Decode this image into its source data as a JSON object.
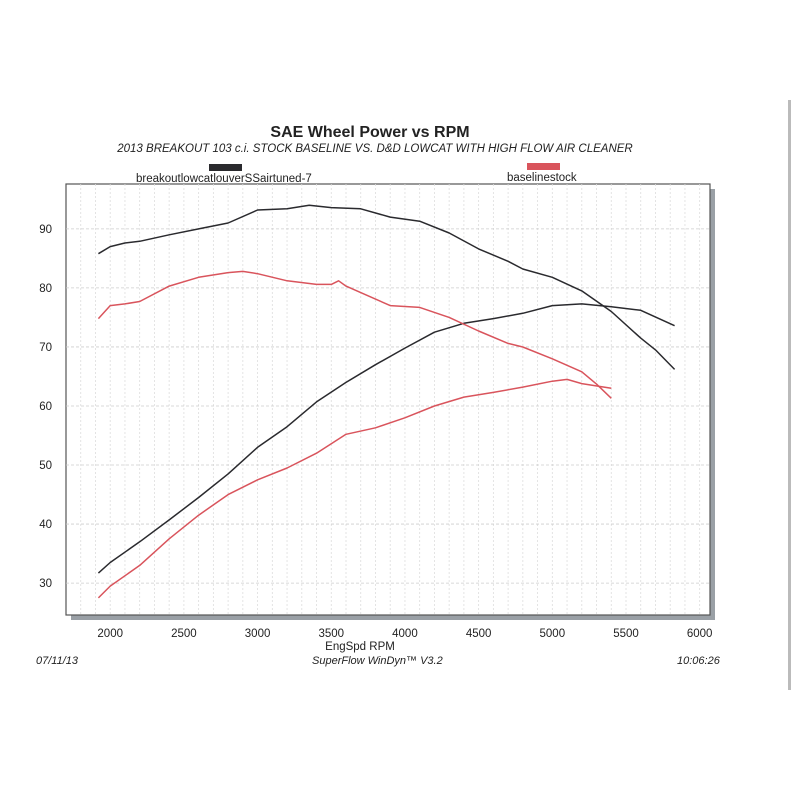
{
  "chart_data": {
    "type": "line",
    "title": "SAE Wheel Power vs RPM",
    "subtitle": "2013 BREAKOUT 103 c.i. STOCK BASELINE VS. D&D LOWCAT WITH HIGH FLOW AIR CLEANER",
    "xlabel": "EngSpd  RPM",
    "ylabel": "",
    "xlim": [
      1700,
      6070
    ],
    "ylim": [
      24.6,
      97.6
    ],
    "xticks": [
      "2000",
      "2500",
      "3000",
      "3500",
      "4000",
      "4500",
      "5000",
      "5500",
      "6000"
    ],
    "yticks": [
      "30",
      "40",
      "50",
      "60",
      "70",
      "80",
      "90"
    ],
    "grid": true,
    "legend": [
      {
        "name": "breakoutlowcatlouverSSairtuned-7",
        "color": "#2a2a2e"
      },
      {
        "name": "baselinestock",
        "color": "#d9545c"
      }
    ],
    "series": [
      {
        "name": "breakoutlowcatlouverSSairtuned-7 (upper)",
        "color": "#2a2a2e",
        "x": [
          1920,
          2000,
          2100,
          2200,
          2400,
          2600,
          2800,
          3000,
          3200,
          3350,
          3500,
          3700,
          3900,
          4100,
          4300,
          4500,
          4700,
          4800,
          5000,
          5200,
          5400,
          5600,
          5700,
          5830
        ],
        "y": [
          85.8,
          87,
          87.6,
          87.9,
          89,
          90,
          91,
          93.2,
          93.4,
          94,
          93.6,
          93.4,
          92,
          91.3,
          89.3,
          86.6,
          84.5,
          83.2,
          81.8,
          79.5,
          76,
          71.5,
          69.5,
          66.2
        ]
      },
      {
        "name": "breakoutlowcatlouverSSairtuned-7 (lower)",
        "color": "#2a2a2e",
        "x": [
          1920,
          2000,
          2200,
          2400,
          2600,
          2800,
          3000,
          3200,
          3400,
          3600,
          3800,
          4000,
          4200,
          4400,
          4600,
          4800,
          5000,
          5200,
          5400,
          5600,
          5830
        ],
        "y": [
          31.7,
          33.5,
          37,
          40.7,
          44.5,
          48.5,
          53,
          56.5,
          60.7,
          64,
          67,
          69.8,
          72.5,
          74,
          74.8,
          75.7,
          77,
          77.3,
          76.8,
          76.2,
          73.6
        ]
      },
      {
        "name": "baselinestock (upper)",
        "color": "#d9545c",
        "x": [
          1920,
          2000,
          2100,
          2200,
          2400,
          2600,
          2800,
          2900,
          3000,
          3200,
          3400,
          3500,
          3550,
          3600,
          3700,
          3900,
          4100,
          4300,
          4500,
          4700,
          4800,
          5000,
          5200,
          5300,
          5400
        ],
        "y": [
          74.8,
          77,
          77.3,
          77.7,
          80.3,
          81.8,
          82.6,
          82.8,
          82.4,
          81.2,
          80.6,
          80.6,
          81.2,
          80.3,
          79.2,
          77,
          76.7,
          75,
          72.7,
          70.6,
          70,
          68,
          65.8,
          63.7,
          61.3
        ]
      },
      {
        "name": "baselinestock (lower)",
        "color": "#d9545c",
        "x": [
          1920,
          2000,
          2200,
          2400,
          2600,
          2800,
          3000,
          3200,
          3400,
          3600,
          3800,
          4000,
          4200,
          4400,
          4600,
          4800,
          5000,
          5100,
          5200,
          5400
        ],
        "y": [
          27.5,
          29.5,
          33,
          37.5,
          41.5,
          45,
          47.5,
          49.5,
          52,
          55.2,
          56.3,
          58,
          60,
          61.5,
          62.3,
          63.2,
          64.2,
          64.5,
          63.8,
          63
        ]
      }
    ]
  },
  "footer": {
    "date": "07/11/13",
    "software": "SuperFlow WinDyn™ V3.2",
    "time": "10:06:26"
  }
}
